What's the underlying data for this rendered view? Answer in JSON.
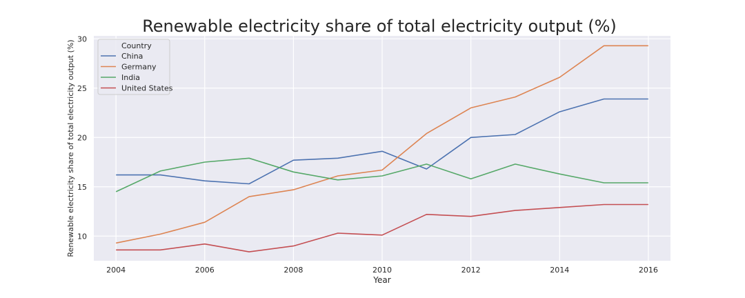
{
  "chart_data": {
    "type": "line",
    "title": "Renewable electricity share of total electricity output (%)",
    "xlabel": "Year",
    "ylabel": "Renewable electricity share of total electricity output (%)",
    "x": [
      2004,
      2005,
      2006,
      2007,
      2008,
      2009,
      2010,
      2011,
      2012,
      2013,
      2014,
      2015,
      2016
    ],
    "xlim": [
      2003.5,
      2016.5
    ],
    "ylim": [
      7.5,
      30.3
    ],
    "xticks": [
      2004,
      2006,
      2008,
      2010,
      2012,
      2014,
      2016
    ],
    "yticks": [
      10,
      15,
      20,
      25,
      30
    ],
    "grid": true,
    "legend": {
      "title": "Country",
      "placement": "top-left"
    },
    "series": [
      {
        "name": "China",
        "color": "#4c72b0",
        "values": [
          16.2,
          16.2,
          15.6,
          15.3,
          17.7,
          17.9,
          18.6,
          16.8,
          20.0,
          20.3,
          22.6,
          23.9,
          23.9
        ]
      },
      {
        "name": "Germany",
        "color": "#dd8452",
        "values": [
          9.3,
          10.2,
          11.4,
          14.0,
          14.7,
          16.1,
          16.7,
          20.4,
          23.0,
          24.1,
          26.1,
          29.3,
          29.3
        ]
      },
      {
        "name": "India",
        "color": "#55a868",
        "values": [
          14.5,
          16.6,
          17.5,
          17.9,
          16.5,
          15.7,
          16.1,
          17.3,
          15.8,
          17.3,
          16.3,
          15.4,
          15.4
        ]
      },
      {
        "name": "United States",
        "color": "#c44e52",
        "values": [
          8.6,
          8.6,
          9.2,
          8.4,
          9.0,
          10.3,
          10.1,
          12.2,
          12.0,
          12.6,
          12.9,
          13.2,
          13.2
        ]
      }
    ]
  },
  "style": {
    "plot_background": "#eaeaf2",
    "grid_color": "#ffffff",
    "text_color": "#262626"
  }
}
